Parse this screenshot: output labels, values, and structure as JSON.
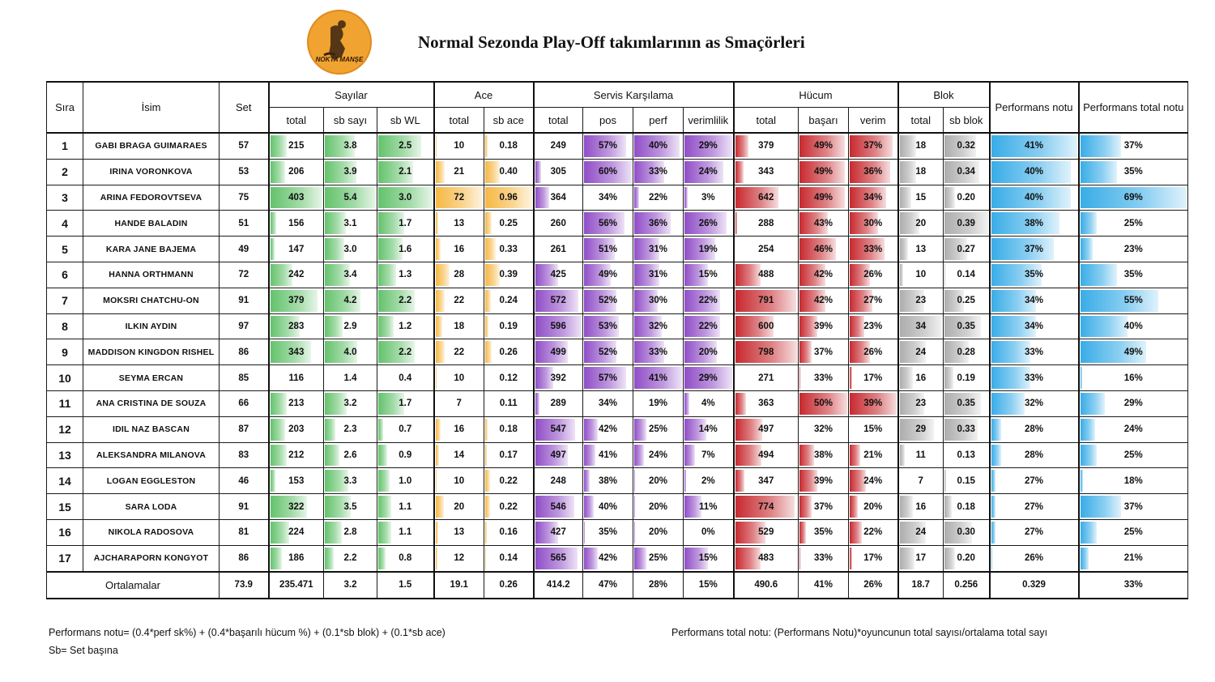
{
  "logo": {
    "text": "NOKTA MANŞE"
  },
  "title": "Normal Sezonda Play-Off takımlarının as Smaçörleri",
  "colors": {
    "sayilar": "#5bbf64",
    "ace": "#f5b43a",
    "servis": "#8a44c4",
    "hucum": "#c41e24",
    "blok": "#a8a8a8",
    "perf": "#2ea8e6"
  },
  "headers": {
    "rank": "Sıra",
    "name": "İsim",
    "set": "Set",
    "groups": {
      "sayilar": "Sayılar",
      "ace": "Ace",
      "servis": "Servis Karşılama",
      "hucum": "Hücum",
      "blok": "Blok"
    },
    "perf": "Performans notu",
    "perf_total": "Performans total notu",
    "sub": {
      "sayilar_total": "total",
      "sayilar_sb": "sb sayı",
      "sayilar_wl": "sb WL",
      "ace_total": "total",
      "ace_sb": "sb ace",
      "servis_total": "total",
      "servis_pos": "pos",
      "servis_perf": "perf",
      "servis_ver": "verimlilik",
      "hucum_total": "total",
      "hucum_basari": "başarı",
      "hucum_verim": "verim",
      "blok_total": "total",
      "blok_sb": "sb blok"
    }
  },
  "columns": [
    "rank",
    "name",
    "set",
    "sayilar_total",
    "sayilar_sb",
    "sayilar_wl",
    "ace_total",
    "ace_sb",
    "servis_total",
    "servis_pos",
    "servis_perf",
    "servis_ver",
    "hucum_total",
    "hucum_basari",
    "hucum_verim",
    "blok_total",
    "blok_sb",
    "perf",
    "perf_total"
  ],
  "players": [
    {
      "rank": "1",
      "name": "GABI BRAGA GUIMARAES",
      "set": "57",
      "sayilar_total": "215",
      "sayilar_sb": "3.8",
      "sayilar_wl": "2.5",
      "ace_total": "10",
      "ace_sb": "0.18",
      "servis_total": "249",
      "servis_pos": "57%",
      "servis_perf": "40%",
      "servis_ver": "29%",
      "hucum_total": "379",
      "hucum_basari": "49%",
      "hucum_verim": "37%",
      "blok_total": "18",
      "blok_sb": "0.32",
      "perf": "41%",
      "perf_total": "37%"
    },
    {
      "rank": "2",
      "name": "IRINA VORONKOVA",
      "set": "53",
      "sayilar_total": "206",
      "sayilar_sb": "3.9",
      "sayilar_wl": "2.1",
      "ace_total": "21",
      "ace_sb": "0.40",
      "servis_total": "305",
      "servis_pos": "60%",
      "servis_perf": "33%",
      "servis_ver": "24%",
      "hucum_total": "343",
      "hucum_basari": "49%",
      "hucum_verim": "36%",
      "blok_total": "18",
      "blok_sb": "0.34",
      "perf": "40%",
      "perf_total": "35%"
    },
    {
      "rank": "3",
      "name": "ARINA FEDOROVTSEVA",
      "set": "75",
      "sayilar_total": "403",
      "sayilar_sb": "5.4",
      "sayilar_wl": "3.0",
      "ace_total": "72",
      "ace_sb": "0.96",
      "servis_total": "364",
      "servis_pos": "34%",
      "servis_perf": "22%",
      "servis_ver": "3%",
      "hucum_total": "642",
      "hucum_basari": "49%",
      "hucum_verim": "34%",
      "blok_total": "15",
      "blok_sb": "0.20",
      "perf": "40%",
      "perf_total": "69%"
    },
    {
      "rank": "4",
      "name": "HANDE BALADIN",
      "set": "51",
      "sayilar_total": "156",
      "sayilar_sb": "3.1",
      "sayilar_wl": "1.7",
      "ace_total": "13",
      "ace_sb": "0.25",
      "servis_total": "260",
      "servis_pos": "56%",
      "servis_perf": "36%",
      "servis_ver": "26%",
      "hucum_total": "288",
      "hucum_basari": "43%",
      "hucum_verim": "30%",
      "blok_total": "20",
      "blok_sb": "0.39",
      "perf": "38%",
      "perf_total": "25%"
    },
    {
      "rank": "5",
      "name": "KARA JANE BAJEMA",
      "set": "49",
      "sayilar_total": "147",
      "sayilar_sb": "3.0",
      "sayilar_wl": "1.6",
      "ace_total": "16",
      "ace_sb": "0.33",
      "servis_total": "261",
      "servis_pos": "51%",
      "servis_perf": "31%",
      "servis_ver": "19%",
      "hucum_total": "254",
      "hucum_basari": "46%",
      "hucum_verim": "33%",
      "blok_total": "13",
      "blok_sb": "0.27",
      "perf": "37%",
      "perf_total": "23%"
    },
    {
      "rank": "6",
      "name": "HANNA ORTHMANN",
      "set": "72",
      "sayilar_total": "242",
      "sayilar_sb": "3.4",
      "sayilar_wl": "1.3",
      "ace_total": "28",
      "ace_sb": "0.39",
      "servis_total": "425",
      "servis_pos": "49%",
      "servis_perf": "31%",
      "servis_ver": "15%",
      "hucum_total": "488",
      "hucum_basari": "42%",
      "hucum_verim": "26%",
      "blok_total": "10",
      "blok_sb": "0.14",
      "perf": "35%",
      "perf_total": "35%"
    },
    {
      "rank": "7",
      "name": "MOKSRI CHATCHU-ON",
      "set": "91",
      "sayilar_total": "379",
      "sayilar_sb": "4.2",
      "sayilar_wl": "2.2",
      "ace_total": "22",
      "ace_sb": "0.24",
      "servis_total": "572",
      "servis_pos": "52%",
      "servis_perf": "30%",
      "servis_ver": "22%",
      "hucum_total": "791",
      "hucum_basari": "42%",
      "hucum_verim": "27%",
      "blok_total": "23",
      "blok_sb": "0.25",
      "perf": "34%",
      "perf_total": "55%"
    },
    {
      "rank": "8",
      "name": "ILKIN AYDIN",
      "set": "97",
      "sayilar_total": "283",
      "sayilar_sb": "2.9",
      "sayilar_wl": "1.2",
      "ace_total": "18",
      "ace_sb": "0.19",
      "servis_total": "596",
      "servis_pos": "53%",
      "servis_perf": "32%",
      "servis_ver": "22%",
      "hucum_total": "600",
      "hucum_basari": "39%",
      "hucum_verim": "23%",
      "blok_total": "34",
      "blok_sb": "0.35",
      "perf": "34%",
      "perf_total": "40%"
    },
    {
      "rank": "9",
      "name": "MADDISON KINGDON RISHEL",
      "set": "86",
      "sayilar_total": "343",
      "sayilar_sb": "4.0",
      "sayilar_wl": "2.2",
      "ace_total": "22",
      "ace_sb": "0.26",
      "servis_total": "499",
      "servis_pos": "52%",
      "servis_perf": "33%",
      "servis_ver": "20%",
      "hucum_total": "798",
      "hucum_basari": "37%",
      "hucum_verim": "26%",
      "blok_total": "24",
      "blok_sb": "0.28",
      "perf": "33%",
      "perf_total": "49%"
    },
    {
      "rank": "10",
      "name": "SEYMA ERCAN",
      "set": "85",
      "sayilar_total": "116",
      "sayilar_sb": "1.4",
      "sayilar_wl": "0.4",
      "ace_total": "10",
      "ace_sb": "0.12",
      "servis_total": "392",
      "servis_pos": "57%",
      "servis_perf": "41%",
      "servis_ver": "29%",
      "hucum_total": "271",
      "hucum_basari": "33%",
      "hucum_verim": "17%",
      "blok_total": "16",
      "blok_sb": "0.19",
      "perf": "33%",
      "perf_total": "16%"
    },
    {
      "rank": "11",
      "name": "ANA CRISTINA DE SOUZA",
      "set": "66",
      "sayilar_total": "213",
      "sayilar_sb": "3.2",
      "sayilar_wl": "1.7",
      "ace_total": "7",
      "ace_sb": "0.11",
      "servis_total": "289",
      "servis_pos": "34%",
      "servis_perf": "19%",
      "servis_ver": "4%",
      "hucum_total": "363",
      "hucum_basari": "50%",
      "hucum_verim": "39%",
      "blok_total": "23",
      "blok_sb": "0.35",
      "perf": "32%",
      "perf_total": "29%"
    },
    {
      "rank": "12",
      "name": "IDIL NAZ BASCAN",
      "set": "87",
      "sayilar_total": "203",
      "sayilar_sb": "2.3",
      "sayilar_wl": "0.7",
      "ace_total": "16",
      "ace_sb": "0.18",
      "servis_total": "547",
      "servis_pos": "42%",
      "servis_perf": "25%",
      "servis_ver": "14%",
      "hucum_total": "497",
      "hucum_basari": "32%",
      "hucum_verim": "15%",
      "blok_total": "29",
      "blok_sb": "0.33",
      "perf": "28%",
      "perf_total": "24%"
    },
    {
      "rank": "13",
      "name": "ALEKSANDRA MILANOVA",
      "set": "83",
      "sayilar_total": "212",
      "sayilar_sb": "2.6",
      "sayilar_wl": "0.9",
      "ace_total": "14",
      "ace_sb": "0.17",
      "servis_total": "497",
      "servis_pos": "41%",
      "servis_perf": "24%",
      "servis_ver": "7%",
      "hucum_total": "494",
      "hucum_basari": "38%",
      "hucum_verim": "21%",
      "blok_total": "11",
      "blok_sb": "0.13",
      "perf": "28%",
      "perf_total": "25%"
    },
    {
      "rank": "14",
      "name": "LOGAN EGGLESTON",
      "set": "46",
      "sayilar_total": "153",
      "sayilar_sb": "3.3",
      "sayilar_wl": "1.0",
      "ace_total": "10",
      "ace_sb": "0.22",
      "servis_total": "248",
      "servis_pos": "38%",
      "servis_perf": "20%",
      "servis_ver": "2%",
      "hucum_total": "347",
      "hucum_basari": "39%",
      "hucum_verim": "24%",
      "blok_total": "7",
      "blok_sb": "0.15",
      "perf": "27%",
      "perf_total": "18%"
    },
    {
      "rank": "15",
      "name": "SARA LODA",
      "set": "91",
      "sayilar_total": "322",
      "sayilar_sb": "3.5",
      "sayilar_wl": "1.1",
      "ace_total": "20",
      "ace_sb": "0.22",
      "servis_total": "546",
      "servis_pos": "40%",
      "servis_perf": "20%",
      "servis_ver": "11%",
      "hucum_total": "774",
      "hucum_basari": "37%",
      "hucum_verim": "20%",
      "blok_total": "16",
      "blok_sb": "0.18",
      "perf": "27%",
      "perf_total": "37%"
    },
    {
      "rank": "16",
      "name": "NIKOLA RADOSOVA",
      "set": "81",
      "sayilar_total": "224",
      "sayilar_sb": "2.8",
      "sayilar_wl": "1.1",
      "ace_total": "13",
      "ace_sb": "0.16",
      "servis_total": "427",
      "servis_pos": "35%",
      "servis_perf": "20%",
      "servis_ver": "0%",
      "hucum_total": "529",
      "hucum_basari": "35%",
      "hucum_verim": "22%",
      "blok_total": "24",
      "blok_sb": "0.30",
      "perf": "27%",
      "perf_total": "25%"
    },
    {
      "rank": "17",
      "name": "AJCHARAPORN KONGYOT",
      "set": "86",
      "sayilar_total": "186",
      "sayilar_sb": "2.2",
      "sayilar_wl": "0.8",
      "ace_total": "12",
      "ace_sb": "0.14",
      "servis_total": "565",
      "servis_pos": "42%",
      "servis_perf": "25%",
      "servis_ver": "15%",
      "hucum_total": "483",
      "hucum_basari": "33%",
      "hucum_verim": "17%",
      "blok_total": "17",
      "blok_sb": "0.20",
      "perf": "26%",
      "perf_total": "21%"
    }
  ],
  "averages": {
    "label": "Ortalamalar",
    "set": "73.9",
    "sayilar_total": "235.471",
    "sayilar_sb": "3.2",
    "sayilar_wl": "1.5",
    "ace_total": "19.1",
    "ace_sb": "0.26",
    "servis_total": "414.2",
    "servis_pos": "47%",
    "servis_perf": "28%",
    "servis_ver": "15%",
    "hucum_total": "490.6",
    "hucum_basari": "41%",
    "hucum_verim": "26%",
    "blok_total": "18.7",
    "blok_sb": "0.256",
    "perf": "0.329",
    "perf_total": "33%"
  },
  "notes": {
    "formula": "Performans notu= (0.4*perf sk%) + (0.4*başarılı hücum %) + (0.1*sb blok) + (0.1*sb ace)",
    "sb": "Sb= Set başına",
    "total_formula": "Performans total notu: (Performans Notu)*oyuncunun total sayısı/ortalama total sayı"
  }
}
